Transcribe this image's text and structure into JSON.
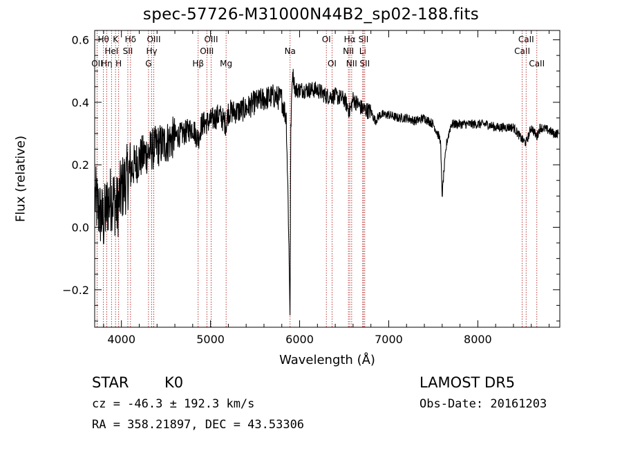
{
  "header": {
    "title": "spec-57726-M31000N44B2_sp02-188.fits"
  },
  "info": {
    "object_type": "STAR",
    "object_class": "K0",
    "survey": "LAMOST DR5",
    "cz": "cz = -46.3 ± 192.3 km/s",
    "obs_date": "Obs-Date: 20161203",
    "radec": "RA = 358.21897, DEC =  43.53306"
  },
  "colors": {
    "spectrum": "#000000",
    "lines": "#b22222",
    "axis": "#000000"
  },
  "chart_data": {
    "type": "line",
    "title": "spec-57726-M31000N44B2_sp02-188.fits",
    "xlabel": "Wavelength (Å)",
    "ylabel": "Flux (relative)",
    "xlim": [
      3700,
      8920
    ],
    "ylim": [
      -0.32,
      0.63
    ],
    "grid": false,
    "xticks": [
      4000,
      5000,
      6000,
      7000,
      8000
    ],
    "xtick_labels": [
      "4000",
      "5000",
      "6000",
      "7000",
      "8000"
    ],
    "yticks": [
      -0.2,
      0.0,
      0.2,
      0.4,
      0.6
    ],
    "ytick_labels": [
      "−0.2",
      "0.0",
      "0.2",
      "0.4",
      "0.6"
    ],
    "series": [
      {
        "x": [
          3700,
          3750,
          3800,
          3850,
          3900,
          3950,
          4000,
          4050,
          4100,
          4150,
          4200,
          4300,
          4400,
          4500,
          4600,
          4700,
          4800,
          4861,
          4900,
          5000,
          5100,
          5175,
          5200,
          5300,
          5400,
          5500,
          5600,
          5700,
          5800,
          5850,
          5870,
          5893,
          5900,
          5920,
          5950,
          6000,
          6100,
          6200,
          6300,
          6400,
          6500,
          6563,
          6600,
          6700,
          6800,
          6850,
          6900,
          7000,
          7100,
          7200,
          7300,
          7400,
          7500,
          7580,
          7600,
          7620,
          7650,
          7700,
          7800,
          7900,
          8000,
          8100,
          8200,
          8300,
          8400,
          8498,
          8542,
          8600,
          8662,
          8700,
          8800,
          8850,
          8900
        ],
        "y": [
          0.1,
          0.05,
          0.02,
          0.08,
          0.1,
          0.06,
          0.12,
          0.15,
          0.18,
          0.2,
          0.22,
          0.24,
          0.26,
          0.27,
          0.29,
          0.3,
          0.32,
          0.28,
          0.33,
          0.34,
          0.36,
          0.33,
          0.37,
          0.37,
          0.38,
          0.4,
          0.41,
          0.42,
          0.41,
          0.35,
          0.1,
          -0.28,
          0.3,
          0.5,
          0.44,
          0.44,
          0.44,
          0.44,
          0.42,
          0.42,
          0.41,
          0.37,
          0.41,
          0.38,
          0.37,
          0.34,
          0.36,
          0.36,
          0.35,
          0.35,
          0.34,
          0.35,
          0.33,
          0.28,
          0.1,
          0.18,
          0.27,
          0.33,
          0.33,
          0.33,
          0.33,
          0.33,
          0.32,
          0.32,
          0.32,
          0.28,
          0.27,
          0.32,
          0.29,
          0.32,
          0.31,
          0.3,
          0.3
        ]
      }
    ],
    "line_markers": [
      {
        "x": 3727,
        "label": "OII",
        "row": 2
      },
      {
        "x": 3798,
        "label": "Hθ",
        "row": 0
      },
      {
        "x": 3835,
        "label": "Hη",
        "row": 2
      },
      {
        "x": 3889,
        "label": "HeI",
        "row": 1
      },
      {
        "x": 3934,
        "label": "K",
        "row": 0
      },
      {
        "x": 3969,
        "label": "H",
        "row": 2
      },
      {
        "x": 4072,
        "label": "SII",
        "row": 1
      },
      {
        "x": 4102,
        "label": "Hδ",
        "row": 0
      },
      {
        "x": 4304,
        "label": "G",
        "row": 2
      },
      {
        "x": 4340,
        "label": "Hγ",
        "row": 1
      },
      {
        "x": 4363,
        "label": "OIII",
        "row": 0
      },
      {
        "x": 4861,
        "label": "Hβ",
        "row": 2
      },
      {
        "x": 4959,
        "label": "OIII",
        "row": 1
      },
      {
        "x": 5007,
        "label": "OIII",
        "row": 0
      },
      {
        "x": 5175,
        "label": "Mg",
        "row": 2
      },
      {
        "x": 5893,
        "label": "Na",
        "row": 1
      },
      {
        "x": 6300,
        "label": "OI",
        "row": 0
      },
      {
        "x": 6364,
        "label": "OI",
        "row": 2
      },
      {
        "x": 6548,
        "label": "NII",
        "row": 1
      },
      {
        "x": 6563,
        "label": "Hα",
        "row": 0
      },
      {
        "x": 6584,
        "label": "NII",
        "row": 2
      },
      {
        "x": 6708,
        "label": "Li",
        "row": 1
      },
      {
        "x": 6717,
        "label": "SII",
        "row": 0
      },
      {
        "x": 6731,
        "label": "SII",
        "row": 2
      },
      {
        "x": 8498,
        "label": "CaII",
        "row": 1
      },
      {
        "x": 8542,
        "label": "CaII",
        "row": 0
      },
      {
        "x": 8662,
        "label": "CaII",
        "row": 2
      }
    ]
  }
}
